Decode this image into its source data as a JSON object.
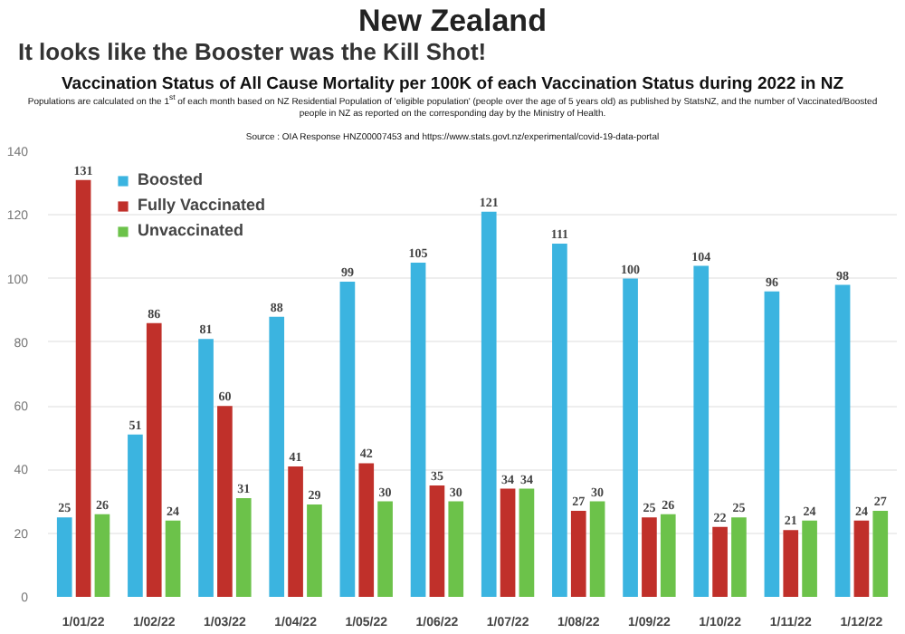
{
  "chart_data": {
    "type": "bar",
    "title": "New Zealand",
    "subtitle": "It looks like the Booster was the Kill Shot!",
    "annotations": [
      "Vaccination Status of All Cause Mortality per 100K of each Vaccination Status during 2022 in NZ",
      "Populations are calculated on the 1$^{st}$ of each month based on NZ Residential Population of 'eligible population' (people over the age of 5 years old) as published by StatsNZ, and the number of Vaccinated/Boosted people in NZ as reported on the corresponding day by the Ministry of Health.",
      "Source : OIA Response HNZ00007453 and https://www.stats.govt.nz/experimental/covid-19-data-portal"
    ],
    "categories": [
      "1/01/22",
      "1/02/22",
      "1/03/22",
      "1/04/22",
      "1/05/22",
      "1/06/22",
      "1/07/22",
      "1/08/22",
      "1/09/22",
      "1/10/22",
      "1/11/22",
      "1/12/22"
    ],
    "series": [
      {
        "name": "Boosted",
        "color": "#3bb4e0",
        "values": [
          25,
          51,
          81,
          88,
          99,
          105,
          121,
          111,
          100,
          104,
          96,
          98
        ]
      },
      {
        "name": "Fully Vaccinated",
        "color": "#c0302a",
        "values": [
          131,
          86,
          60,
          41,
          42,
          35,
          34,
          27,
          25,
          22,
          21,
          24
        ]
      },
      {
        "name": "Unvaccinated",
        "color": "#6cc24a",
        "values": [
          26,
          24,
          31,
          29,
          30,
          30,
          34,
          30,
          26,
          25,
          24,
          27
        ]
      }
    ],
    "ylim": [
      0,
      140
    ],
    "yticks": [
      0,
      20,
      40,
      60,
      80,
      100,
      120,
      140
    ],
    "grid": "y",
    "legend": "top left",
    "data_labels": true
  }
}
